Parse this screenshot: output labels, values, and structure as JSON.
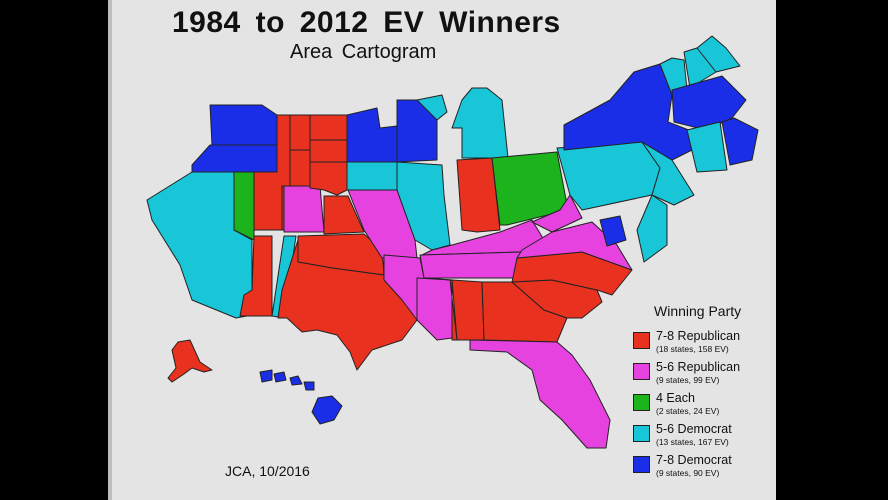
{
  "title": "1984 to 2012 EV Winners",
  "subtitle": "Area Cartogram",
  "credit": "JCA, 10/2016",
  "colors": {
    "rep78": "#e8321f",
    "rep56": "#e642e0",
    "each4": "#1cb31c",
    "dem56": "#18c6d8",
    "dem78": "#1a2ee8"
  },
  "legend": {
    "title": "Winning Party",
    "items": [
      {
        "key": "rep78",
        "label": "7-8 Republican",
        "detail": "(18 states, 158 EV)"
      },
      {
        "key": "rep56",
        "label": "5-6 Republican",
        "detail": "(9 states, 99 EV)"
      },
      {
        "key": "each4",
        "label": "4 Each",
        "detail": "(2 states, 24 EV)"
      },
      {
        "key": "dem56",
        "label": "5-6 Democrat",
        "detail": "(13 states, 167 EV)"
      },
      {
        "key": "dem78",
        "label": "7-8 Democrat",
        "detail": "(9 states, 90 EV)"
      }
    ]
  },
  "states": {
    "washington": "dem78",
    "oregon": "dem78",
    "california": "dem56",
    "nevada": "each4",
    "idaho": "rep78",
    "montana": "rep78",
    "wyoming": "rep78",
    "utah": "rep78",
    "colorado": "rep56",
    "arizona": "rep78",
    "new-mexico": "dem56",
    "north-dakota": "rep78",
    "south-dakota": "rep78",
    "nebraska": "rep78",
    "kansas": "rep78",
    "oklahoma": "rep78",
    "texas": "rep78",
    "minnesota": "dem78",
    "iowa": "dem56",
    "missouri": "rep56",
    "arkansas": "rep56",
    "louisiana": "rep56",
    "wisconsin": "dem78",
    "illinois": "dem56",
    "michigan": "dem56",
    "indiana": "rep78",
    "ohio": "each4",
    "kentucky": "rep56",
    "tennessee": "rep56",
    "mississippi": "rep78",
    "alabama": "rep78",
    "georgia": "rep78",
    "south-carolina": "rep78",
    "north-carolina": "rep78",
    "virginia": "rep56",
    "west-virginia": "rep56",
    "florida": "rep56",
    "pennsylvania": "dem56",
    "new-jersey": "dem56",
    "delaware": "dem56",
    "maryland": "dem78",
    "new-york": "dem78",
    "vermont": "dem56",
    "new-hampshire": "dem56",
    "maine": "dem56",
    "massachusetts": "dem78",
    "connecticut": "dem56",
    "rhode-island": "dem78",
    "alaska": "rep78",
    "hawaii": "dem78"
  }
}
